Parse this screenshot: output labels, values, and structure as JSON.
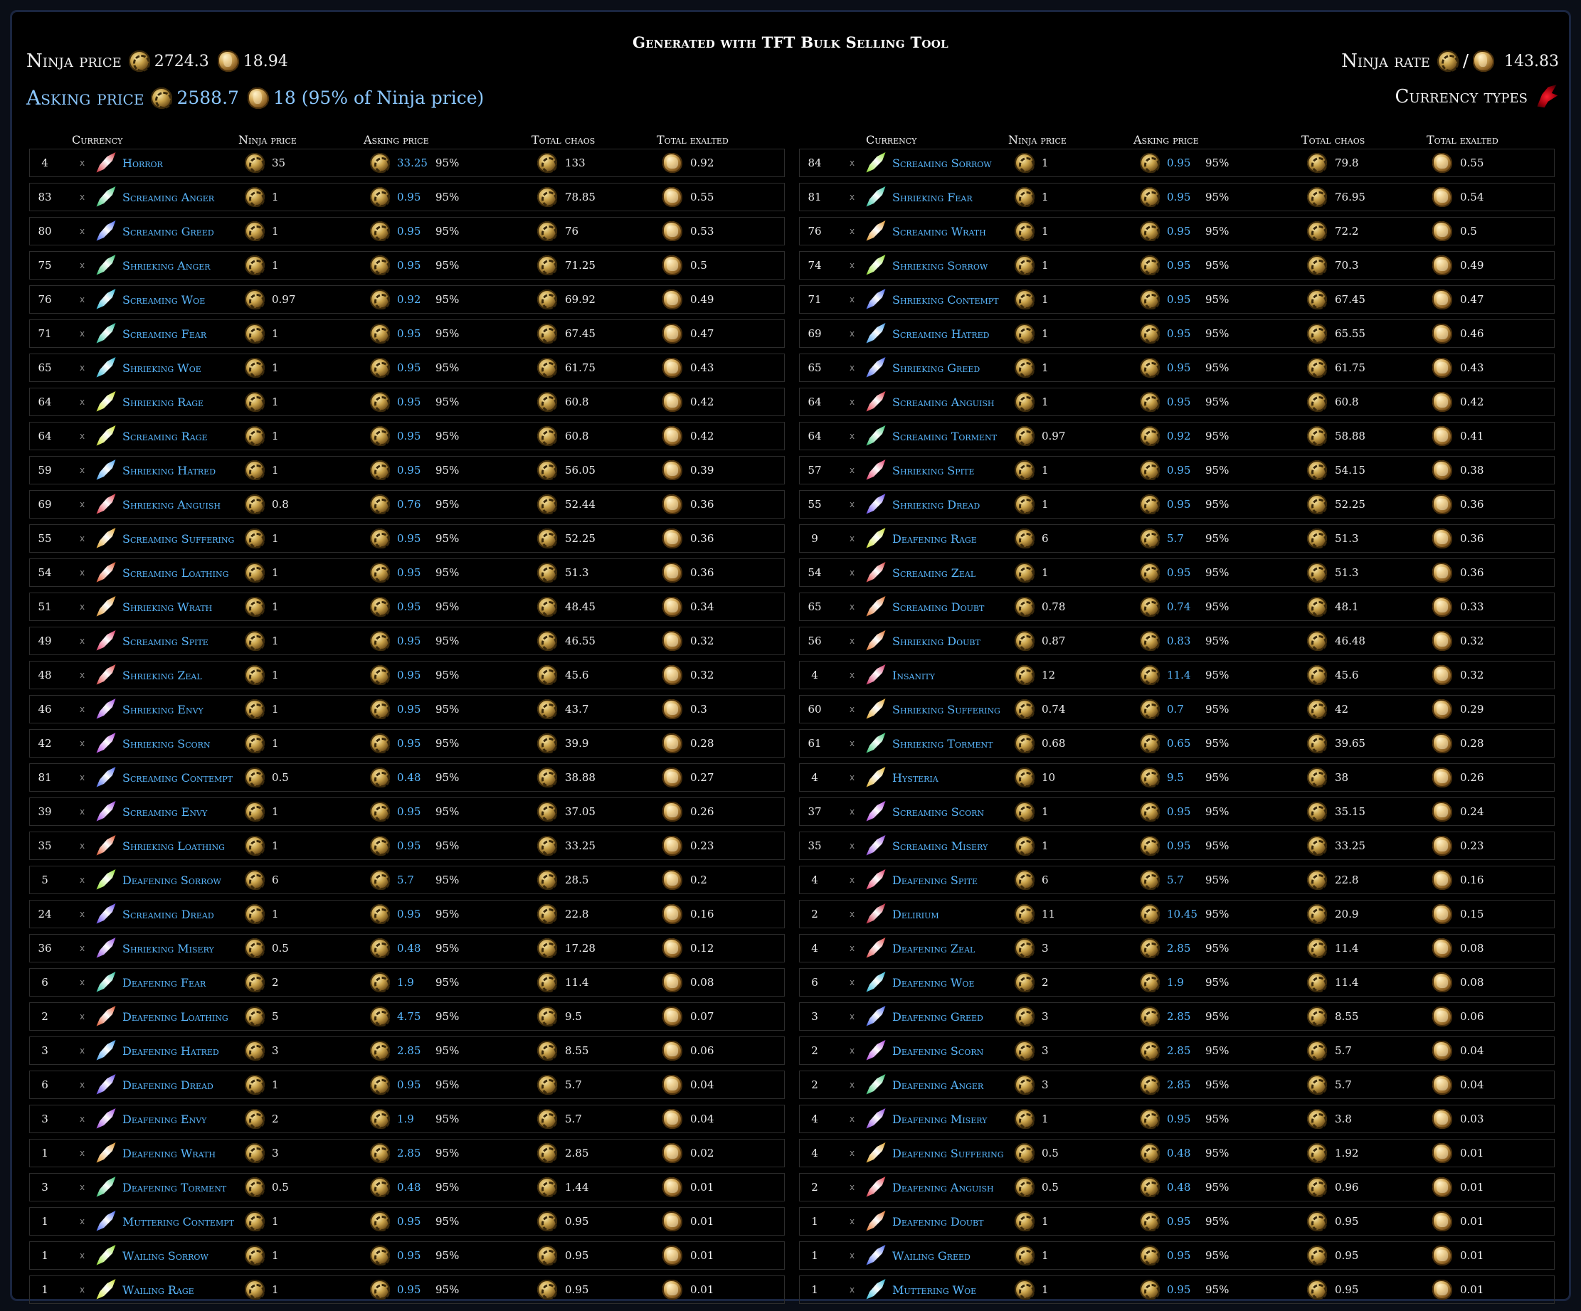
{
  "title": "Generated with TFT Bulk Selling Tool",
  "summary": {
    "ninja_price_label": "Ninja price",
    "ninja_price_chaos": "2724.3",
    "ninja_price_exalt": "18.94",
    "asking_price_label": "Asking price",
    "asking_price_chaos": "2588.7",
    "asking_price_exalt": "18 (95% of Ninja price)",
    "ninja_rate_label": "Ninja rate",
    "ninja_rate_slash": "/",
    "ninja_rate_value": "143.83",
    "currency_types_label": "Currency types"
  },
  "columns": {
    "currency": "Currency",
    "ninja_price": "Ninja price",
    "asking_price": "Asking price",
    "total_chaos": "Total chaos",
    "total_exalted": "Total exalted"
  },
  "multiply_sign": "x",
  "left_rows": [
    {
      "qty": "4",
      "name": "Horror",
      "ninja": "35",
      "ask": "33.25",
      "pct": "95%",
      "chaos": "133",
      "exalt": "0.92",
      "color": "#d0202a"
    },
    {
      "qty": "83",
      "name": "Screaming Anger",
      "ninja": "1",
      "ask": "0.95",
      "pct": "95%",
      "chaos": "78.85",
      "exalt": "0.55",
      "color": "#27c26a"
    },
    {
      "qty": "80",
      "name": "Screaming Greed",
      "ninja": "1",
      "ask": "0.95",
      "pct": "95%",
      "chaos": "76",
      "exalt": "0.53",
      "color": "#3a5cf0"
    },
    {
      "qty": "75",
      "name": "Shrieking Anger",
      "ninja": "1",
      "ask": "0.95",
      "pct": "95%",
      "chaos": "71.25",
      "exalt": "0.5",
      "color": "#27c26a"
    },
    {
      "qty": "76",
      "name": "Screaming Woe",
      "ninja": "0.97",
      "ask": "0.92",
      "pct": "95%",
      "chaos": "69.92",
      "exalt": "0.49",
      "color": "#20b4d6"
    },
    {
      "qty": "71",
      "name": "Screaming Fear",
      "ninja": "1",
      "ask": "0.95",
      "pct": "95%",
      "chaos": "67.45",
      "exalt": "0.47",
      "color": "#20c09a"
    },
    {
      "qty": "65",
      "name": "Shrieking Woe",
      "ninja": "1",
      "ask": "0.95",
      "pct": "95%",
      "chaos": "61.75",
      "exalt": "0.43",
      "color": "#20b4d6"
    },
    {
      "qty": "64",
      "name": "Shrieking Rage",
      "ninja": "1",
      "ask": "0.95",
      "pct": "95%",
      "chaos": "60.8",
      "exalt": "0.42",
      "color": "#c8e020"
    },
    {
      "qty": "64",
      "name": "Screaming Rage",
      "ninja": "1",
      "ask": "0.95",
      "pct": "95%",
      "chaos": "60.8",
      "exalt": "0.42",
      "color": "#c8e020"
    },
    {
      "qty": "59",
      "name": "Shrieking Hatred",
      "ninja": "1",
      "ask": "0.95",
      "pct": "95%",
      "chaos": "56.05",
      "exalt": "0.39",
      "color": "#3a9cf0"
    },
    {
      "qty": "69",
      "name": "Shrieking Anguish",
      "ninja": "0.8",
      "ask": "0.76",
      "pct": "95%",
      "chaos": "52.44",
      "exalt": "0.36",
      "color": "#e02a3a"
    },
    {
      "qty": "55",
      "name": "Screaming Suffering",
      "ninja": "1",
      "ask": "0.95",
      "pct": "95%",
      "chaos": "52.25",
      "exalt": "0.36",
      "color": "#e0a020"
    },
    {
      "qty": "54",
      "name": "Screaming Loathing",
      "ninja": "1",
      "ask": "0.95",
      "pct": "95%",
      "chaos": "51.3",
      "exalt": "0.36",
      "color": "#e04a20"
    },
    {
      "qty": "51",
      "name": "Shrieking Wrath",
      "ninja": "1",
      "ask": "0.95",
      "pct": "95%",
      "chaos": "48.45",
      "exalt": "0.34",
      "color": "#e09020"
    },
    {
      "qty": "49",
      "name": "Screaming Spite",
      "ninja": "1",
      "ask": "0.95",
      "pct": "95%",
      "chaos": "46.55",
      "exalt": "0.32",
      "color": "#e02a5a"
    },
    {
      "qty": "48",
      "name": "Shrieking Zeal",
      "ninja": "1",
      "ask": "0.95",
      "pct": "95%",
      "chaos": "45.6",
      "exalt": "0.32",
      "color": "#e03a3a"
    },
    {
      "qty": "46",
      "name": "Shrieking Envy",
      "ninja": "1",
      "ask": "0.95",
      "pct": "95%",
      "chaos": "43.7",
      "exalt": "0.3",
      "color": "#9a3ae0"
    },
    {
      "qty": "42",
      "name": "Shrieking Scorn",
      "ninja": "1",
      "ask": "0.95",
      "pct": "95%",
      "chaos": "39.9",
      "exalt": "0.28",
      "color": "#b03ae0"
    },
    {
      "qty": "81",
      "name": "Screaming Contempt",
      "ninja": "0.5",
      "ask": "0.48",
      "pct": "95%",
      "chaos": "38.88",
      "exalt": "0.27",
      "color": "#3a5cf0"
    },
    {
      "qty": "39",
      "name": "Screaming Envy",
      "ninja": "1",
      "ask": "0.95",
      "pct": "95%",
      "chaos": "37.05",
      "exalt": "0.26",
      "color": "#9a3ae0"
    },
    {
      "qty": "35",
      "name": "Shrieking Loathing",
      "ninja": "1",
      "ask": "0.95",
      "pct": "95%",
      "chaos": "33.25",
      "exalt": "0.23",
      "color": "#e04a20"
    },
    {
      "qty": "5",
      "name": "Deafening Sorrow",
      "ninja": "6",
      "ask": "5.7",
      "pct": "95%",
      "chaos": "28.5",
      "exalt": "0.2",
      "color": "#8ae020"
    },
    {
      "qty": "24",
      "name": "Screaming Dread",
      "ninja": "1",
      "ask": "0.95",
      "pct": "95%",
      "chaos": "22.8",
      "exalt": "0.16",
      "color": "#5a3af0"
    },
    {
      "qty": "36",
      "name": "Shrieking Misery",
      "ninja": "0.5",
      "ask": "0.48",
      "pct": "95%",
      "chaos": "17.28",
      "exalt": "0.12",
      "color": "#8a3ae0"
    },
    {
      "qty": "6",
      "name": "Deafening Fear",
      "ninja": "2",
      "ask": "1.9",
      "pct": "95%",
      "chaos": "11.4",
      "exalt": "0.08",
      "color": "#20c09a"
    },
    {
      "qty": "2",
      "name": "Deafening Loathing",
      "ninja": "5",
      "ask": "4.75",
      "pct": "95%",
      "chaos": "9.5",
      "exalt": "0.07",
      "color": "#e04a20"
    },
    {
      "qty": "3",
      "name": "Deafening Hatred",
      "ninja": "3",
      "ask": "2.85",
      "pct": "95%",
      "chaos": "8.55",
      "exalt": "0.06",
      "color": "#3a9cf0"
    },
    {
      "qty": "6",
      "name": "Deafening Dread",
      "ninja": "1",
      "ask": "0.95",
      "pct": "95%",
      "chaos": "5.7",
      "exalt": "0.04",
      "color": "#5a3af0"
    },
    {
      "qty": "3",
      "name": "Deafening Envy",
      "ninja": "2",
      "ask": "1.9",
      "pct": "95%",
      "chaos": "5.7",
      "exalt": "0.04",
      "color": "#9a3ae0"
    },
    {
      "qty": "1",
      "name": "Deafening Wrath",
      "ninja": "3",
      "ask": "2.85",
      "pct": "95%",
      "chaos": "2.85",
      "exalt": "0.02",
      "color": "#e09020"
    },
    {
      "qty": "3",
      "name": "Deafening Torment",
      "ninja": "0.5",
      "ask": "0.48",
      "pct": "95%",
      "chaos": "1.44",
      "exalt": "0.01",
      "color": "#27c26a"
    },
    {
      "qty": "1",
      "name": "Muttering Contempt",
      "ninja": "1",
      "ask": "0.95",
      "pct": "95%",
      "chaos": "0.95",
      "exalt": "0.01",
      "color": "#3a5cf0"
    },
    {
      "qty": "1",
      "name": "Wailing Sorrow",
      "ninja": "1",
      "ask": "0.95",
      "pct": "95%",
      "chaos": "0.95",
      "exalt": "0.01",
      "color": "#8ae020"
    },
    {
      "qty": "1",
      "name": "Wailing Rage",
      "ninja": "1",
      "ask": "0.95",
      "pct": "95%",
      "chaos": "0.95",
      "exalt": "0.01",
      "color": "#c8e020"
    }
  ],
  "right_rows": [
    {
      "qty": "84",
      "name": "Screaming Sorrow",
      "ninja": "1",
      "ask": "0.95",
      "pct": "95%",
      "chaos": "79.8",
      "exalt": "0.55",
      "color": "#8ae020"
    },
    {
      "qty": "81",
      "name": "Shrieking Fear",
      "ninja": "1",
      "ask": "0.95",
      "pct": "95%",
      "chaos": "76.95",
      "exalt": "0.54",
      "color": "#20c09a"
    },
    {
      "qty": "76",
      "name": "Screaming Wrath",
      "ninja": "1",
      "ask": "0.95",
      "pct": "95%",
      "chaos": "72.2",
      "exalt": "0.5",
      "color": "#e09020"
    },
    {
      "qty": "74",
      "name": "Shrieking Sorrow",
      "ninja": "1",
      "ask": "0.95",
      "pct": "95%",
      "chaos": "70.3",
      "exalt": "0.49",
      "color": "#8ae020"
    },
    {
      "qty": "71",
      "name": "Shrieking Contempt",
      "ninja": "1",
      "ask": "0.95",
      "pct": "95%",
      "chaos": "67.45",
      "exalt": "0.47",
      "color": "#3a5cf0"
    },
    {
      "qty": "69",
      "name": "Screaming Hatred",
      "ninja": "1",
      "ask": "0.95",
      "pct": "95%",
      "chaos": "65.55",
      "exalt": "0.46",
      "color": "#3a9cf0"
    },
    {
      "qty": "65",
      "name": "Shrieking Greed",
      "ninja": "1",
      "ask": "0.95",
      "pct": "95%",
      "chaos": "61.75",
      "exalt": "0.43",
      "color": "#3a5cf0"
    },
    {
      "qty": "64",
      "name": "Screaming Anguish",
      "ninja": "1",
      "ask": "0.95",
      "pct": "95%",
      "chaos": "60.8",
      "exalt": "0.42",
      "color": "#e02a3a"
    },
    {
      "qty": "64",
      "name": "Screaming Torment",
      "ninja": "0.97",
      "ask": "0.92",
      "pct": "95%",
      "chaos": "58.88",
      "exalt": "0.41",
      "color": "#27c26a"
    },
    {
      "qty": "57",
      "name": "Shrieking Spite",
      "ninja": "1",
      "ask": "0.95",
      "pct": "95%",
      "chaos": "54.15",
      "exalt": "0.38",
      "color": "#e02a5a"
    },
    {
      "qty": "55",
      "name": "Shrieking Dread",
      "ninja": "1",
      "ask": "0.95",
      "pct": "95%",
      "chaos": "52.25",
      "exalt": "0.36",
      "color": "#5a3af0"
    },
    {
      "qty": "9",
      "name": "Deafening Rage",
      "ninja": "6",
      "ask": "5.7",
      "pct": "95%",
      "chaos": "51.3",
      "exalt": "0.36",
      "color": "#c8e020"
    },
    {
      "qty": "54",
      "name": "Screaming Zeal",
      "ninja": "1",
      "ask": "0.95",
      "pct": "95%",
      "chaos": "51.3",
      "exalt": "0.36",
      "color": "#e03a3a"
    },
    {
      "qty": "65",
      "name": "Screaming Doubt",
      "ninja": "0.78",
      "ask": "0.74",
      "pct": "95%",
      "chaos": "48.1",
      "exalt": "0.33",
      "color": "#e06a20"
    },
    {
      "qty": "56",
      "name": "Shrieking Doubt",
      "ninja": "0.87",
      "ask": "0.83",
      "pct": "95%",
      "chaos": "46.48",
      "exalt": "0.32",
      "color": "#e06a20"
    },
    {
      "qty": "4",
      "name": "Insanity",
      "ninja": "12",
      "ask": "11.4",
      "pct": "95%",
      "chaos": "45.6",
      "exalt": "0.32",
      "color": "#d0205a"
    },
    {
      "qty": "60",
      "name": "Shrieking Suffering",
      "ninja": "0.74",
      "ask": "0.7",
      "pct": "95%",
      "chaos": "42",
      "exalt": "0.29",
      "color": "#e0a020"
    },
    {
      "qty": "61",
      "name": "Shrieking Torment",
      "ninja": "0.68",
      "ask": "0.65",
      "pct": "95%",
      "chaos": "39.65",
      "exalt": "0.28",
      "color": "#27c26a"
    },
    {
      "qty": "4",
      "name": "Hysteria",
      "ninja": "10",
      "ask": "9.5",
      "pct": "95%",
      "chaos": "38",
      "exalt": "0.26",
      "color": "#e0b020"
    },
    {
      "qty": "37",
      "name": "Screaming Scorn",
      "ninja": "1",
      "ask": "0.95",
      "pct": "95%",
      "chaos": "35.15",
      "exalt": "0.24",
      "color": "#b03ae0"
    },
    {
      "qty": "35",
      "name": "Screaming Misery",
      "ninja": "1",
      "ask": "0.95",
      "pct": "95%",
      "chaos": "33.25",
      "exalt": "0.23",
      "color": "#8a3ae0"
    },
    {
      "qty": "4",
      "name": "Deafening Spite",
      "ninja": "6",
      "ask": "5.7",
      "pct": "95%",
      "chaos": "22.8",
      "exalt": "0.16",
      "color": "#e02a5a"
    },
    {
      "qty": "2",
      "name": "Delirium",
      "ninja": "11",
      "ask": "10.45",
      "pct": "95%",
      "chaos": "20.9",
      "exalt": "0.15",
      "color": "#c0102a"
    },
    {
      "qty": "4",
      "name": "Deafening Zeal",
      "ninja": "3",
      "ask": "2.85",
      "pct": "95%",
      "chaos": "11.4",
      "exalt": "0.08",
      "color": "#e03a3a"
    },
    {
      "qty": "6",
      "name": "Deafening Woe",
      "ninja": "2",
      "ask": "1.9",
      "pct": "95%",
      "chaos": "11.4",
      "exalt": "0.08",
      "color": "#20b4d6"
    },
    {
      "qty": "3",
      "name": "Deafening Greed",
      "ninja": "3",
      "ask": "2.85",
      "pct": "95%",
      "chaos": "8.55",
      "exalt": "0.06",
      "color": "#3a5cf0"
    },
    {
      "qty": "2",
      "name": "Deafening Scorn",
      "ninja": "3",
      "ask": "2.85",
      "pct": "95%",
      "chaos": "5.7",
      "exalt": "0.04",
      "color": "#b03ae0"
    },
    {
      "qty": "2",
      "name": "Deafening Anger",
      "ninja": "3",
      "ask": "2.85",
      "pct": "95%",
      "chaos": "5.7",
      "exalt": "0.04",
      "color": "#27c26a"
    },
    {
      "qty": "4",
      "name": "Deafening Misery",
      "ninja": "1",
      "ask": "0.95",
      "pct": "95%",
      "chaos": "3.8",
      "exalt": "0.03",
      "color": "#8a3ae0"
    },
    {
      "qty": "4",
      "name": "Deafening Suffering",
      "ninja": "0.5",
      "ask": "0.48",
      "pct": "95%",
      "chaos": "1.92",
      "exalt": "0.01",
      "color": "#e0a020"
    },
    {
      "qty": "2",
      "name": "Deafening Anguish",
      "ninja": "0.5",
      "ask": "0.48",
      "pct": "95%",
      "chaos": "0.96",
      "exalt": "0.01",
      "color": "#e02a3a"
    },
    {
      "qty": "1",
      "name": "Deafening Doubt",
      "ninja": "1",
      "ask": "0.95",
      "pct": "95%",
      "chaos": "0.95",
      "exalt": "0.01",
      "color": "#e06a20"
    },
    {
      "qty": "1",
      "name": "Wailing Greed",
      "ninja": "1",
      "ask": "0.95",
      "pct": "95%",
      "chaos": "0.95",
      "exalt": "0.01",
      "color": "#3a5cf0"
    },
    {
      "qty": "1",
      "name": "Muttering Woe",
      "ninja": "1",
      "ask": "0.95",
      "pct": "95%",
      "chaos": "0.95",
      "exalt": "0.01",
      "color": "#20b4d6"
    }
  ]
}
